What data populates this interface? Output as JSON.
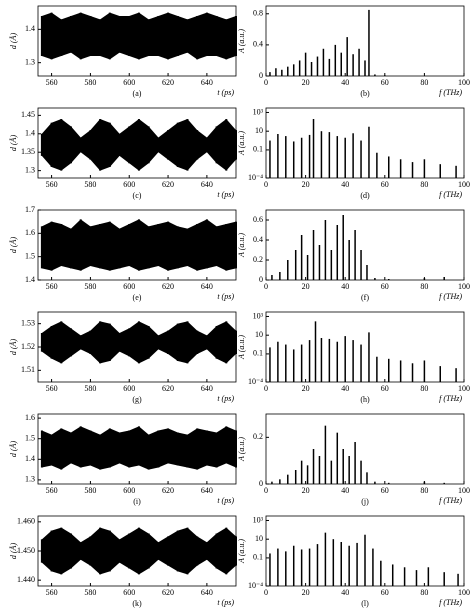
{
  "chart_data": [
    {
      "type": "band",
      "caption": "(a)",
      "xlabel": "t (ps)",
      "ylabel": "d (Å)",
      "x": [
        555,
        560,
        565,
        570,
        575,
        580,
        585,
        590,
        595,
        600,
        605,
        610,
        615,
        620,
        625,
        630,
        635,
        640,
        645,
        650,
        655
      ],
      "upper": [
        1.44,
        1.45,
        1.43,
        1.44,
        1.45,
        1.44,
        1.43,
        1.45,
        1.44,
        1.44,
        1.45,
        1.43,
        1.44,
        1.45,
        1.44,
        1.43,
        1.44,
        1.45,
        1.44,
        1.43,
        1.44
      ],
      "lower": [
        1.32,
        1.31,
        1.32,
        1.33,
        1.31,
        1.32,
        1.32,
        1.31,
        1.33,
        1.32,
        1.31,
        1.32,
        1.32,
        1.31,
        1.32,
        1.33,
        1.31,
        1.32,
        1.32,
        1.31,
        1.32
      ],
      "xlim": [
        553,
        655
      ],
      "xticks": [
        560,
        580,
        600,
        620,
        640
      ],
      "ylim": [
        1.26,
        1.47
      ],
      "yticks": [
        1.3,
        1.4
      ],
      "color": "#000000"
    },
    {
      "type": "bar",
      "caption": "(b)",
      "xlabel": "f (THz)",
      "ylabel": "A (a.u.)",
      "x": [
        2,
        5,
        8,
        11,
        14,
        17,
        20,
        23,
        26,
        29,
        32,
        35,
        38,
        41,
        44,
        47,
        50,
        52,
        55,
        60
      ],
      "values": [
        0.05,
        0.1,
        0.08,
        0.12,
        0.15,
        0.2,
        0.3,
        0.18,
        0.25,
        0.35,
        0.22,
        0.4,
        0.3,
        0.5,
        0.28,
        0.35,
        0.2,
        0.85,
        0.02,
        0.01
      ],
      "xlim": [
        0,
        100
      ],
      "xticks": [
        0,
        20,
        40,
        60,
        80,
        100
      ],
      "ylim": [
        0,
        0.9
      ],
      "yticks": [
        0,
        0.4,
        0.8
      ],
      "color": "#000000"
    },
    {
      "type": "band",
      "caption": "(c)",
      "xlabel": "t (ps)",
      "ylabel": "d (Å)",
      "x": [
        555,
        560,
        565,
        570,
        575,
        580,
        585,
        590,
        595,
        600,
        605,
        610,
        615,
        620,
        625,
        630,
        635,
        640,
        645,
        650,
        655
      ],
      "upper": [
        1.4,
        1.43,
        1.44,
        1.42,
        1.39,
        1.41,
        1.44,
        1.43,
        1.4,
        1.42,
        1.44,
        1.42,
        1.39,
        1.41,
        1.43,
        1.44,
        1.41,
        1.39,
        1.42,
        1.44,
        1.41
      ],
      "lower": [
        1.34,
        1.31,
        1.3,
        1.32,
        1.35,
        1.33,
        1.3,
        1.31,
        1.34,
        1.32,
        1.3,
        1.32,
        1.35,
        1.33,
        1.31,
        1.3,
        1.33,
        1.35,
        1.32,
        1.3,
        1.33
      ],
      "xlim": [
        553,
        655
      ],
      "xticks": [
        560,
        580,
        600,
        620,
        640
      ],
      "ylim": [
        1.28,
        1.47
      ],
      "yticks": [
        1.3,
        1.35,
        1.4,
        1.45
      ],
      "color": "#000000"
    },
    {
      "type": "bar",
      "caption": "(d)",
      "xlabel": "f (THz)",
      "ylabel": "A (a.u.)",
      "log": true,
      "x": [
        2,
        6,
        10,
        14,
        18,
        22,
        24,
        28,
        32,
        36,
        40,
        44,
        48,
        52,
        56,
        62,
        68,
        74,
        80,
        88,
        96
      ],
      "values": [
        1,
        5,
        3,
        0.8,
        2,
        4,
        200,
        10,
        8,
        3,
        2,
        6,
        1,
        30,
        0.05,
        0.02,
        0.01,
        0.005,
        0.01,
        0.003,
        0.002
      ],
      "xlim": [
        0,
        100
      ],
      "xticks": [
        0,
        20,
        40,
        60,
        80,
        100
      ],
      "ylim": [
        0.0001,
        3000
      ],
      "yticks": [
        {
          "value": 0.0001,
          "label": "10⁻⁴"
        },
        0.1,
        10,
        {
          "value": 1000,
          "label": "10³"
        }
      ],
      "color": "#000000"
    },
    {
      "type": "band",
      "caption": "(e)",
      "xlabel": "t (ps)",
      "ylabel": "d (Å)",
      "x": [
        555,
        560,
        565,
        570,
        575,
        580,
        585,
        590,
        595,
        600,
        605,
        610,
        615,
        620,
        625,
        630,
        635,
        640,
        645,
        650,
        655
      ],
      "upper": [
        1.63,
        1.65,
        1.64,
        1.62,
        1.66,
        1.63,
        1.64,
        1.65,
        1.62,
        1.64,
        1.66,
        1.63,
        1.64,
        1.65,
        1.63,
        1.62,
        1.64,
        1.66,
        1.63,
        1.64,
        1.65
      ],
      "lower": [
        1.45,
        1.44,
        1.46,
        1.45,
        1.44,
        1.46,
        1.45,
        1.44,
        1.45,
        1.46,
        1.44,
        1.45,
        1.46,
        1.44,
        1.45,
        1.46,
        1.44,
        1.45,
        1.46,
        1.44,
        1.45
      ],
      "xlim": [
        553,
        655
      ],
      "xticks": [
        560,
        580,
        600,
        620,
        640
      ],
      "ylim": [
        1.4,
        1.7
      ],
      "yticks": [
        1.4,
        1.5,
        1.6,
        1.7
      ],
      "color": "#000000"
    },
    {
      "type": "bar",
      "caption": "(f)",
      "xlabel": "f (THz)",
      "ylabel": "A (a.u.)",
      "x": [
        3,
        7,
        11,
        15,
        18,
        21,
        24,
        27,
        30,
        33,
        36,
        39,
        42,
        45,
        48,
        51,
        55,
        62,
        80,
        90
      ],
      "values": [
        0.05,
        0.08,
        0.2,
        0.3,
        0.45,
        0.25,
        0.5,
        0.35,
        0.6,
        0.3,
        0.55,
        0.65,
        0.4,
        0.5,
        0.3,
        0.15,
        0.02,
        0.01,
        0.02,
        0.03
      ],
      "xlim": [
        0,
        100
      ],
      "xticks": [
        0,
        20,
        40,
        60,
        80,
        100
      ],
      "ylim": [
        0,
        0.7
      ],
      "yticks": [
        0,
        0.2,
        0.4,
        0.6
      ],
      "color": "#000000"
    },
    {
      "type": "band",
      "caption": "(g)",
      "xlabel": "t (ps)",
      "ylabel": "d (Å)",
      "x": [
        555,
        560,
        565,
        570,
        575,
        580,
        585,
        590,
        595,
        600,
        605,
        610,
        615,
        620,
        625,
        630,
        635,
        640,
        645,
        650,
        655
      ],
      "upper": [
        1.526,
        1.529,
        1.531,
        1.528,
        1.525,
        1.527,
        1.531,
        1.53,
        1.526,
        1.528,
        1.531,
        1.529,
        1.525,
        1.527,
        1.53,
        1.531,
        1.527,
        1.525,
        1.529,
        1.531,
        1.527
      ],
      "lower": [
        1.518,
        1.515,
        1.513,
        1.516,
        1.519,
        1.517,
        1.513,
        1.514,
        1.518,
        1.516,
        1.513,
        1.515,
        1.519,
        1.517,
        1.514,
        1.513,
        1.517,
        1.519,
        1.515,
        1.513,
        1.517
      ],
      "xlim": [
        553,
        655
      ],
      "xticks": [
        560,
        580,
        600,
        620,
        640
      ],
      "ylim": [
        1.505,
        1.535
      ],
      "yticks": [
        1.51,
        1.52,
        1.53
      ],
      "color": "#000000"
    },
    {
      "type": "bar",
      "caption": "(h)",
      "xlabel": "f (THz)",
      "ylabel": "A (a.u.)",
      "log": true,
      "x": [
        2,
        6,
        10,
        14,
        18,
        22,
        25,
        28,
        32,
        36,
        40,
        44,
        48,
        52,
        56,
        62,
        68,
        74,
        80,
        88,
        96
      ],
      "values": [
        0.5,
        2,
        1,
        0.3,
        1,
        3,
        300,
        5,
        4,
        2,
        8,
        3,
        1,
        20,
        0.05,
        0.03,
        0.02,
        0.01,
        0.02,
        0.005,
        0.003
      ],
      "xlim": [
        0,
        100
      ],
      "xticks": [
        0,
        20,
        40,
        60,
        80,
        100
      ],
      "ylim": [
        0.0001,
        3000
      ],
      "yticks": [
        {
          "value": 0.0001,
          "label": "10⁻⁴"
        },
        0.1,
        10,
        {
          "value": 1000,
          "label": "10³"
        }
      ],
      "color": "#000000"
    },
    {
      "type": "band",
      "caption": "(i)",
      "xlabel": "t (ps)",
      "ylabel": "d (Å)",
      "x": [
        555,
        560,
        565,
        570,
        575,
        580,
        585,
        590,
        595,
        600,
        605,
        610,
        615,
        620,
        625,
        630,
        635,
        640,
        645,
        650,
        655
      ],
      "upper": [
        1.54,
        1.52,
        1.55,
        1.53,
        1.56,
        1.54,
        1.52,
        1.55,
        1.53,
        1.54,
        1.56,
        1.52,
        1.54,
        1.55,
        1.53,
        1.52,
        1.55,
        1.54,
        1.53,
        1.56,
        1.54
      ],
      "lower": [
        1.36,
        1.37,
        1.35,
        1.38,
        1.36,
        1.37,
        1.35,
        1.36,
        1.38,
        1.36,
        1.37,
        1.35,
        1.36,
        1.38,
        1.37,
        1.36,
        1.35,
        1.37,
        1.36,
        1.38,
        1.36
      ],
      "xlim": [
        553,
        655
      ],
      "xticks": [
        560,
        580,
        600,
        620,
        640
      ],
      "ylim": [
        1.28,
        1.62
      ],
      "yticks": [
        1.3,
        1.4,
        1.5,
        1.6
      ],
      "color": "#000000"
    },
    {
      "type": "bar",
      "caption": "(j)",
      "xlabel": "f (THz)",
      "ylabel": "A (a.u.)",
      "x": [
        3,
        7,
        11,
        15,
        18,
        21,
        24,
        27,
        30,
        33,
        36,
        39,
        42,
        45,
        48,
        51,
        55,
        62,
        80,
        90
      ],
      "values": [
        0.01,
        0.02,
        0.04,
        0.06,
        0.1,
        0.08,
        0.15,
        0.12,
        0.25,
        0.1,
        0.22,
        0.15,
        0.12,
        0.18,
        0.1,
        0.05,
        0.01,
        0.005,
        0.01,
        0.005
      ],
      "xlim": [
        0,
        100
      ],
      "xticks": [
        0,
        20,
        40,
        60,
        80,
        100
      ],
      "ylim": [
        0,
        0.3
      ],
      "yticks": [
        0,
        0.2
      ],
      "color": "#000000"
    },
    {
      "type": "band",
      "caption": "(k)",
      "xlabel": "t (ps)",
      "ylabel": "d (Å)",
      "x": [
        555,
        560,
        565,
        570,
        575,
        580,
        585,
        590,
        595,
        600,
        605,
        610,
        615,
        620,
        625,
        630,
        635,
        640,
        645,
        650,
        655
      ],
      "upper": [
        1.454,
        1.457,
        1.458,
        1.456,
        1.453,
        1.455,
        1.458,
        1.457,
        1.454,
        1.456,
        1.458,
        1.456,
        1.453,
        1.455,
        1.457,
        1.458,
        1.455,
        1.453,
        1.456,
        1.458,
        1.455
      ],
      "lower": [
        1.446,
        1.443,
        1.442,
        1.444,
        1.447,
        1.445,
        1.442,
        1.443,
        1.446,
        1.444,
        1.442,
        1.444,
        1.447,
        1.445,
        1.443,
        1.442,
        1.445,
        1.447,
        1.444,
        1.442,
        1.445
      ],
      "xlim": [
        553,
        655
      ],
      "xticks": [
        560,
        580,
        600,
        620,
        640
      ],
      "ylim": [
        1.438,
        1.462
      ],
      "yticks": [
        {
          "value": 1.44,
          "label": "1.440"
        },
        {
          "value": 1.45,
          "label": "1.450"
        },
        {
          "value": 1.46,
          "label": "1.460"
        }
      ],
      "color": "#000000"
    },
    {
      "type": "bar",
      "caption": "(l)",
      "xlabel": "f (THz)",
      "ylabel": "A (a.u.)",
      "log": true,
      "x": [
        2,
        6,
        10,
        14,
        18,
        22,
        26,
        30,
        34,
        38,
        42,
        46,
        50,
        54,
        58,
        64,
        70,
        76,
        82,
        90,
        97
      ],
      "values": [
        0.3,
        1,
        0.5,
        2,
        0.8,
        1,
        3,
        50,
        10,
        5,
        2,
        4,
        30,
        1,
        0.05,
        0.02,
        0.01,
        0.005,
        0.01,
        0.003,
        0.002
      ],
      "xlim": [
        0,
        100
      ],
      "xticks": [
        0,
        20,
        40,
        60,
        80,
        100
      ],
      "ylim": [
        0.0001,
        3000
      ],
      "yticks": [
        {
          "value": 0.0001,
          "label": "10⁻⁴"
        },
        0.1,
        10,
        {
          "value": 1000,
          "label": "10³"
        }
      ],
      "color": "#000000"
    }
  ]
}
